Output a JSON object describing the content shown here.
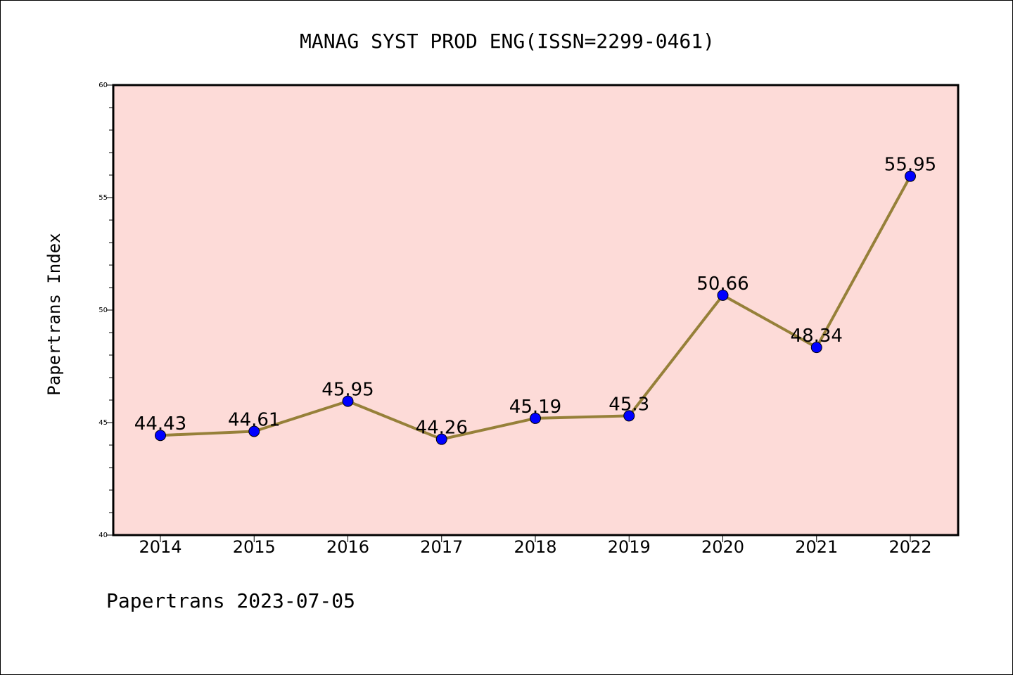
{
  "chart_data": {
    "type": "line",
    "title": "MANAG SYST PROD ENG(ISSN=2299-0461)",
    "ylabel": "Papertrans Index",
    "xlabel": "",
    "categories": [
      "2014",
      "2015",
      "2016",
      "2017",
      "2018",
      "2019",
      "2020",
      "2021",
      "2022"
    ],
    "values": [
      44.43,
      44.61,
      45.95,
      44.26,
      45.19,
      45.3,
      50.66,
      48.34,
      55.95
    ],
    "data_labels": [
      "44.43",
      "44.61",
      "45.95",
      "44.26",
      "45.19",
      "45.3",
      "50.66",
      "48.34",
      "55.95"
    ],
    "ylim": [
      40,
      60
    ],
    "y_ticks": [
      40,
      45,
      50,
      55,
      60
    ],
    "y_tick_labels": [
      "40",
      "45",
      "50",
      "55",
      "60"
    ],
    "grid": false,
    "legend": "none",
    "footer": "Papertrans 2023-07-05",
    "colors": {
      "plot_background": "#fddbd8",
      "line": "#968039",
      "marker": "#0000ff",
      "axis": "#000000"
    }
  }
}
